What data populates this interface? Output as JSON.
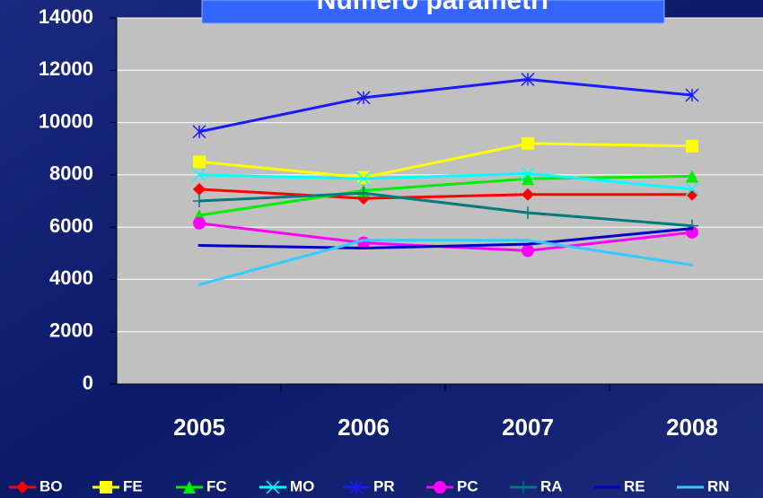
{
  "chart_data": {
    "type": "line",
    "title": "Numero parametri",
    "categories": [
      "2005",
      "2006",
      "2007",
      "2008"
    ],
    "ylim": [
      0,
      14000
    ],
    "yticks": [
      0,
      2000,
      4000,
      6000,
      8000,
      10000,
      12000,
      14000
    ],
    "grid": true,
    "series": [
      {
        "name": "BO",
        "color": "#ff0000",
        "marker": "diamond",
        "values": [
          7450,
          7100,
          7250,
          7250
        ]
      },
      {
        "name": "FE",
        "color": "#ffff00",
        "marker": "square",
        "values": [
          8500,
          7900,
          9200,
          9100
        ]
      },
      {
        "name": "FC",
        "color": "#00ee00",
        "marker": "triangle",
        "values": [
          6450,
          7400,
          7850,
          7950
        ]
      },
      {
        "name": "MO",
        "color": "#00ffff",
        "marker": "x",
        "values": [
          8000,
          7850,
          8050,
          7450
        ]
      },
      {
        "name": "PR",
        "color": "#1a1aff",
        "marker": "star",
        "values": [
          9650,
          10950,
          11650,
          11050
        ]
      },
      {
        "name": "PC",
        "color": "#ff00ff",
        "marker": "circle",
        "values": [
          6150,
          5400,
          5100,
          5800
        ]
      },
      {
        "name": "RA",
        "color": "#007a7a",
        "marker": "plus",
        "values": [
          7000,
          7300,
          6550,
          6050
        ]
      },
      {
        "name": "RE",
        "color": "#0000cc",
        "marker": "none",
        "values": [
          5300,
          5200,
          5350,
          5950
        ]
      },
      {
        "name": "RN",
        "color": "#33ccff",
        "marker": "none",
        "values": [
          3800,
          5500,
          5500,
          4550
        ]
      }
    ]
  }
}
